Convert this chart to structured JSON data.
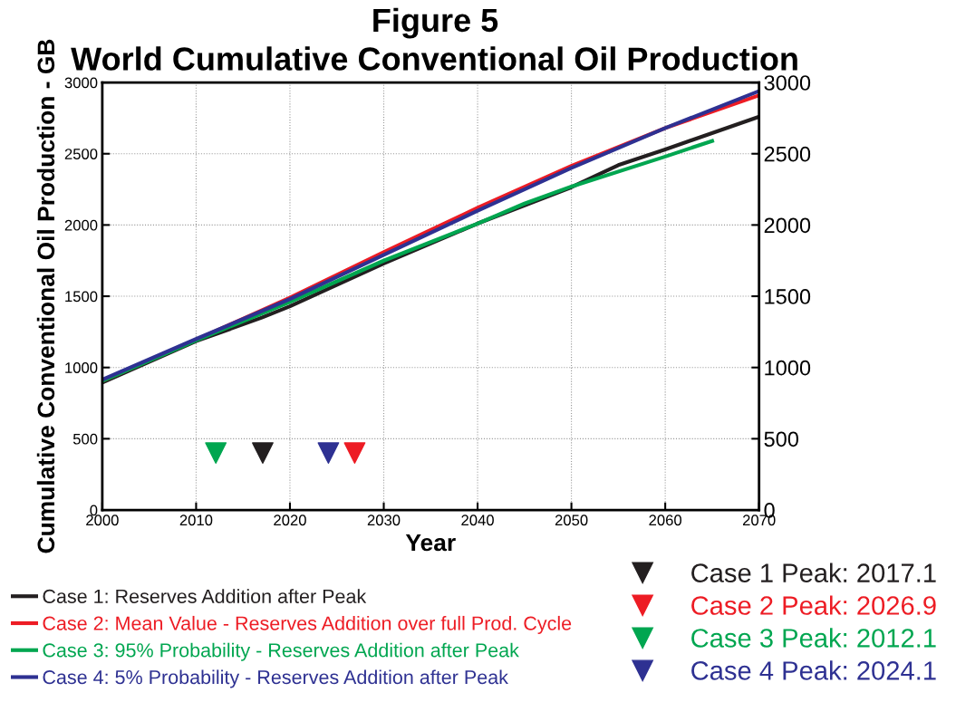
{
  "chart_data": {
    "type": "line",
    "title": "Figure 5",
    "subtitle": "World Cumulative Conventional Oil Production",
    "xlabel": "Year",
    "ylabel": "Cumulative Conventional Oil Production - GB",
    "xlim": [
      2000,
      2070
    ],
    "xticks": [
      2000,
      2010,
      2020,
      2030,
      2040,
      2050,
      2060,
      2070
    ],
    "ylim": [
      0,
      3000
    ],
    "yticks": [
      0,
      500,
      1000,
      1500,
      2000,
      2500,
      3000
    ],
    "y2lim": [
      0,
      3000
    ],
    "y2ticks": [
      0,
      500,
      1000,
      1500,
      2000,
      2500,
      3000
    ],
    "grid": true,
    "legend": "bottom",
    "series": [
      {
        "name": "Case 1: Reserves Addition after Peak",
        "color": "#231f20",
        "x": [
          2000,
          2010,
          2017,
          2020,
          2030,
          2040,
          2050,
          2055,
          2060,
          2070
        ],
        "values": [
          895,
          1185,
          1350,
          1430,
          1730,
          2010,
          2265,
          2420,
          2530,
          2760
        ]
      },
      {
        "name": "Case 2: Mean Value - Reserves Addition over full Prod. Cycle",
        "color": "#ed1c24",
        "x": [
          2000,
          2010,
          2020,
          2030,
          2040,
          2050,
          2060,
          2070
        ],
        "values": [
          905,
          1195,
          1490,
          1810,
          2120,
          2415,
          2680,
          2910
        ]
      },
      {
        "name": "Case 3: 95% Probability - Reserves Addition after Peak",
        "color": "#00a650",
        "x": [
          2000,
          2010,
          2020,
          2030,
          2040,
          2045,
          2050,
          2060,
          2065
        ],
        "values": [
          905,
          1190,
          1460,
          1750,
          2010,
          2150,
          2270,
          2480,
          2590
        ]
      },
      {
        "name": "Case 4: 5% Probability - Reserves Addition after Peak",
        "color": "#2e3192",
        "x": [
          2000,
          2010,
          2020,
          2030,
          2040,
          2050,
          2060,
          2070
        ],
        "values": [
          915,
          1200,
          1480,
          1790,
          2100,
          2400,
          2680,
          2940
        ]
      },
      {
        "type": "scatter",
        "marker": "triangle",
        "name": "Case 1 Peak: 2017.1",
        "color": "#231f20",
        "x": [
          2017.1
        ],
        "values": [
          400
        ]
      },
      {
        "type": "scatter",
        "marker": "triangle",
        "name": "Case 2 Peak: 2026.9",
        "color": "#ed1c24",
        "x": [
          2026.9
        ],
        "values": [
          400
        ]
      },
      {
        "type": "scatter",
        "marker": "triangle",
        "name": "Case 3 Peak: 2012.1",
        "color": "#00a650",
        "x": [
          2012.1
        ],
        "values": [
          400
        ]
      },
      {
        "type": "scatter",
        "marker": "triangle",
        "name": "Case 4 Peak: 2024.1",
        "color": "#2e3192",
        "x": [
          2024.1
        ],
        "values": [
          400
        ]
      }
    ]
  }
}
